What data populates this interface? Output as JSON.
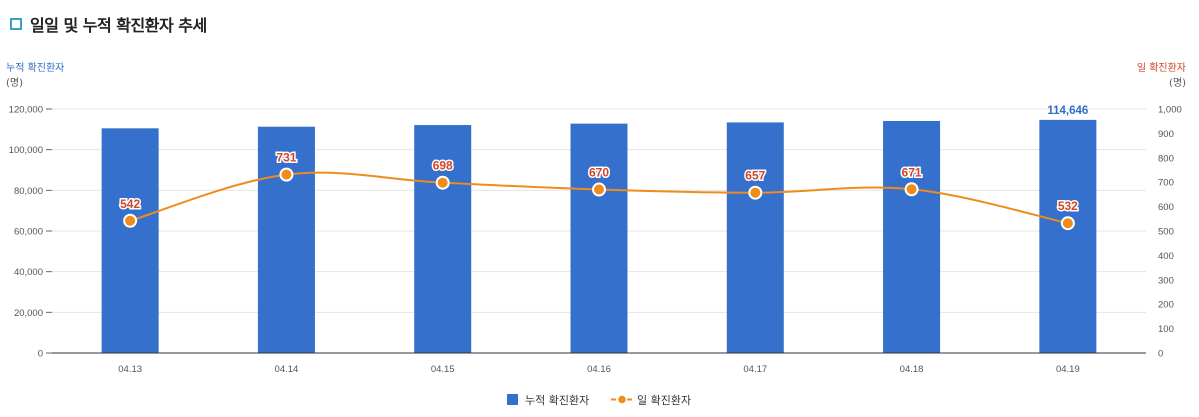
{
  "header": {
    "title": "일일 및 누적 확진환자 추세"
  },
  "colors": {
    "bar": "#3470cc",
    "line": "#ef8c1b",
    "left_axis_title": "#2f6fc6",
    "right_axis_title": "#d2452a",
    "bar_label": "#2f6fc6",
    "point_label": "#d2452a"
  },
  "chart_data": {
    "type": "bar",
    "categories": [
      "04.13",
      "04.14",
      "04.15",
      "04.16",
      "04.17",
      "04.18",
      "04.19"
    ],
    "series": [
      {
        "name": "누적 확진환자",
        "type": "bar",
        "axis": "left",
        "values": [
          110500,
          111300,
          112100,
          112800,
          113400,
          114100,
          114646
        ],
        "labels": [
          "",
          "",
          "",
          "",
          "",
          "",
          "114,646"
        ]
      },
      {
        "name": "일 확진환자",
        "type": "line",
        "axis": "right",
        "values": [
          542,
          731,
          698,
          670,
          657,
          671,
          532
        ],
        "labels": [
          "542",
          "731",
          "698",
          "670",
          "657",
          "671",
          "532"
        ]
      }
    ],
    "y_left": {
      "title": "누적 확진환자",
      "unit": "(명)",
      "range": [
        0,
        120000
      ],
      "ticks": [
        0,
        20000,
        40000,
        60000,
        80000,
        100000,
        120000
      ],
      "tick_labels": [
        "0",
        "20,000",
        "40,000",
        "60,000",
        "80,000",
        "100,000",
        "120,000"
      ]
    },
    "y_right": {
      "title": "일 확진환자",
      "unit": "(명)",
      "range": [
        0,
        1000
      ],
      "ticks": [
        0,
        100,
        200,
        300,
        400,
        500,
        600,
        700,
        800,
        900,
        1000
      ],
      "tick_labels": [
        "0",
        "100",
        "200",
        "300",
        "400",
        "500",
        "600",
        "700",
        "800",
        "900",
        "1,000"
      ]
    },
    "grid": true,
    "legend": {
      "placement": "bottom-center",
      "entries": [
        "누적 확진환자",
        "일 확진환자"
      ]
    }
  }
}
